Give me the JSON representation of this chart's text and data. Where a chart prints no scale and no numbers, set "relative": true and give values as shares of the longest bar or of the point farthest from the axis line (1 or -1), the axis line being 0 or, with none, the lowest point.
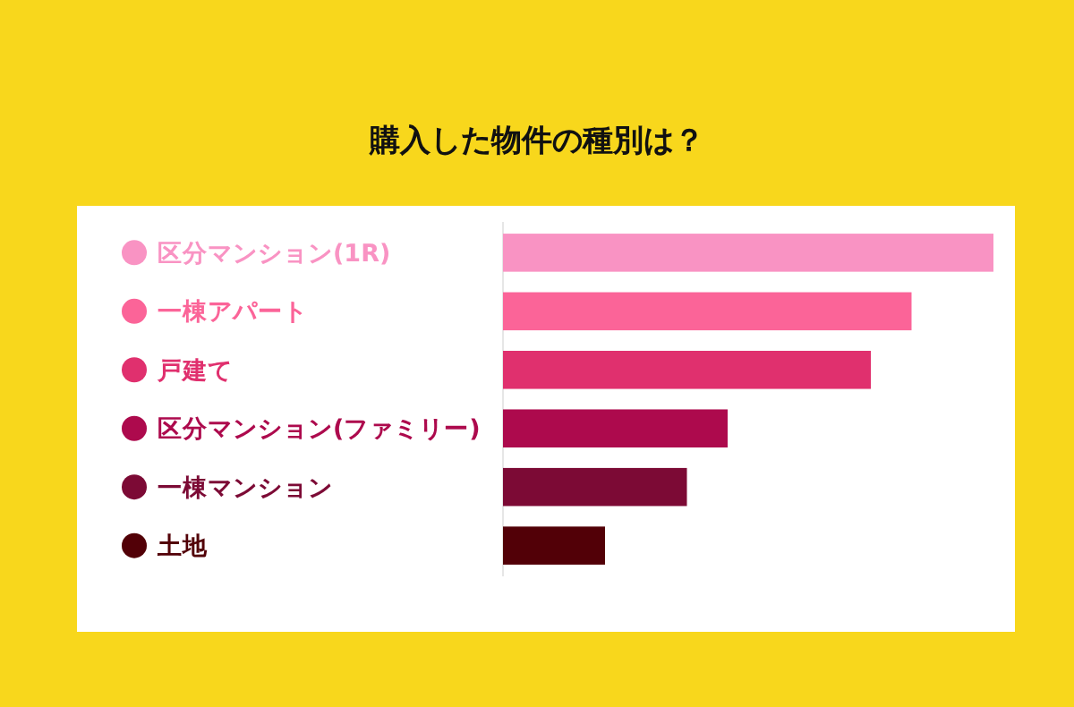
{
  "chart_data": {
    "type": "bar",
    "orientation": "horizontal",
    "relative": true,
    "title": "購入した物件の種別は？",
    "categories": [
      "区分マンション(1R)",
      "一棟アパート",
      "戸建て",
      "区分マンション(ファミリー)",
      "一棟マンション",
      "土地"
    ],
    "values": [
      1,
      0.833,
      0.75,
      0.458,
      0.375,
      0.208
    ],
    "colors": [
      "#f993c3",
      "#fb6498",
      "#e0306e",
      "#ad0a4d",
      "#7c0a35",
      "#520007"
    ]
  }
}
